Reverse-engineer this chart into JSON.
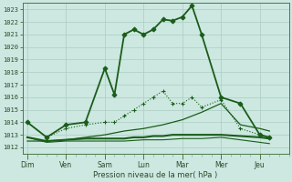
{
  "bg_color": "#cce8e0",
  "grid_color": "#aaccc4",
  "line_color": "#1a5c1a",
  "xlabel": "Pression niveau de la mer( hPa )",
  "ylim": [
    1011.5,
    1023.5
  ],
  "yticks": [
    1012,
    1013,
    1014,
    1015,
    1016,
    1017,
    1018,
    1019,
    1020,
    1021,
    1022,
    1023
  ],
  "x_labels": [
    "Dim",
    "Ven",
    "Sam",
    "Lun",
    "Mar",
    "Mer",
    "Jeu"
  ],
  "x_day_pos": [
    0,
    4,
    8,
    12,
    16,
    20,
    24
  ],
  "xlim": [
    -0.5,
    27
  ],
  "series": [
    {
      "x": [
        0,
        2,
        4,
        6,
        8,
        9,
        10,
        11,
        12,
        13,
        14,
        15,
        16,
        17,
        18,
        20,
        22,
        24,
        25
      ],
      "y": [
        1014.0,
        1012.8,
        1013.8,
        1014.0,
        1018.3,
        1016.2,
        1021.0,
        1021.4,
        1021.0,
        1021.4,
        1022.2,
        1022.1,
        1022.4,
        1023.3,
        1021.0,
        1016.0,
        1015.5,
        1013.0,
        1012.8
      ],
      "marker": "D",
      "markersize": 2.5,
      "linewidth": 1.3,
      "markerfacecolor": "#1a5c1a"
    },
    {
      "x": [
        0,
        2,
        4,
        6,
        8,
        9,
        10,
        11,
        12,
        13,
        14,
        15,
        16,
        17,
        18,
        20,
        22,
        24,
        25
      ],
      "y": [
        1014.0,
        1012.8,
        1013.5,
        1013.8,
        1014.0,
        1014.0,
        1014.5,
        1015.0,
        1015.5,
        1016.0,
        1016.5,
        1015.5,
        1015.5,
        1016.0,
        1015.2,
        1015.8,
        1013.5,
        1013.0,
        1012.8
      ],
      "marker": "+",
      "markersize": 3,
      "linewidth": 0.8,
      "linestyle": "dotted",
      "markerfacecolor": "#1a5c1a"
    },
    {
      "x": [
        0,
        2,
        4,
        6,
        8,
        9,
        10,
        11,
        12,
        13,
        14,
        15,
        16,
        17,
        18,
        20,
        22,
        24,
        25
      ],
      "y": [
        1012.8,
        1012.5,
        1012.6,
        1012.7,
        1012.7,
        1012.7,
        1012.7,
        1012.8,
        1012.8,
        1012.9,
        1012.9,
        1013.0,
        1013.0,
        1013.0,
        1013.0,
        1013.0,
        1012.9,
        1012.8,
        1012.7
      ],
      "marker": "None",
      "markersize": 0,
      "linewidth": 1.5,
      "linestyle": "solid",
      "markerfacecolor": "#1a5c1a"
    },
    {
      "x": [
        0,
        2,
        4,
        6,
        8,
        10,
        12,
        14,
        16,
        18,
        20,
        22,
        24,
        25
      ],
      "y": [
        1012.5,
        1012.5,
        1012.6,
        1012.8,
        1013.0,
        1013.3,
        1013.5,
        1013.8,
        1014.2,
        1014.8,
        1015.5,
        1013.8,
        1013.5,
        1013.3
      ],
      "marker": "None",
      "markersize": 0,
      "linewidth": 0.9,
      "linestyle": "solid",
      "markerfacecolor": "#1a5c1a"
    },
    {
      "x": [
        0,
        2,
        4,
        6,
        8,
        10,
        12,
        14,
        16,
        18,
        20,
        22,
        24,
        25
      ],
      "y": [
        1012.8,
        1012.4,
        1012.5,
        1012.5,
        1012.5,
        1012.5,
        1012.6,
        1012.6,
        1012.7,
        1012.7,
        1012.8,
        1012.6,
        1012.4,
        1012.3
      ],
      "marker": "None",
      "markersize": 0,
      "linewidth": 0.8,
      "linestyle": "solid",
      "markerfacecolor": "#1a5c1a"
    }
  ]
}
